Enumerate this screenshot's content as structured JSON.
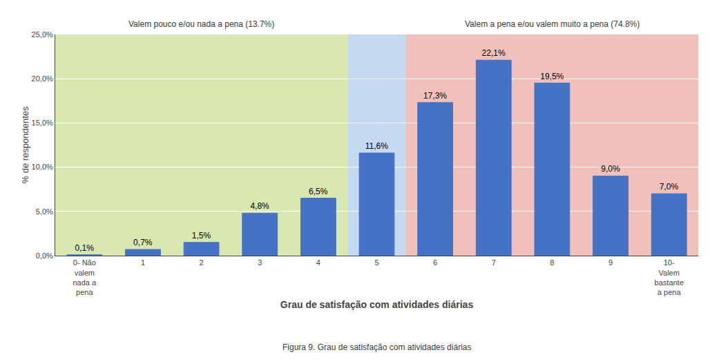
{
  "chart_data": {
    "type": "bar",
    "categories": [
      "0- Não\nvalem\nnada a\npena",
      "1",
      "2",
      "3",
      "4",
      "5",
      "6",
      "7",
      "8",
      "9",
      "10-\nValem\nbastante\na pena"
    ],
    "values": [
      0.1,
      0.7,
      1.5,
      4.8,
      6.5,
      11.6,
      17.3,
      22.1,
      19.5,
      9.0,
      7.0
    ],
    "value_labels": [
      "0,1%",
      "0,7%",
      "1,5%",
      "4,8%",
      "6,5%",
      "11,6%",
      "17,3%",
      "22,1%",
      "19,5%",
      "9,0%",
      "7,0%"
    ],
    "data_labels": true,
    "color": "#4472C4",
    "xlabel": "Grau de satisfação com atividades diárias",
    "ylabel": "% de respondentes",
    "ylim": [
      0,
      25
    ],
    "yticks": [
      {
        "value": 0,
        "label": "0,0%"
      },
      {
        "value": 5,
        "label": "5,0%"
      },
      {
        "value": 10,
        "label": "10,0%"
      },
      {
        "value": 15,
        "label": "15,0%"
      },
      {
        "value": 20,
        "label": "20,0%"
      },
      {
        "value": 25,
        "label": "25,0%"
      }
    ],
    "grid": true,
    "regions": [
      {
        "from": "0- Não\nvalem\nnada a\npena",
        "to": "4",
        "color": "#d9e8b0",
        "label": "Valem pouco e/ou nada a pena (13.7%)"
      },
      {
        "from": "5",
        "to": "5",
        "color": "#c5d9f1"
      },
      {
        "from": "6",
        "to": "10-\nValem\nbastante\na pena",
        "color": "#f2c0bb",
        "label": "Valem a pena e/ou valem muito a pena (74.8%)"
      }
    ],
    "caption": "Figura 9. Grau de satisfação com atividades diárias"
  }
}
